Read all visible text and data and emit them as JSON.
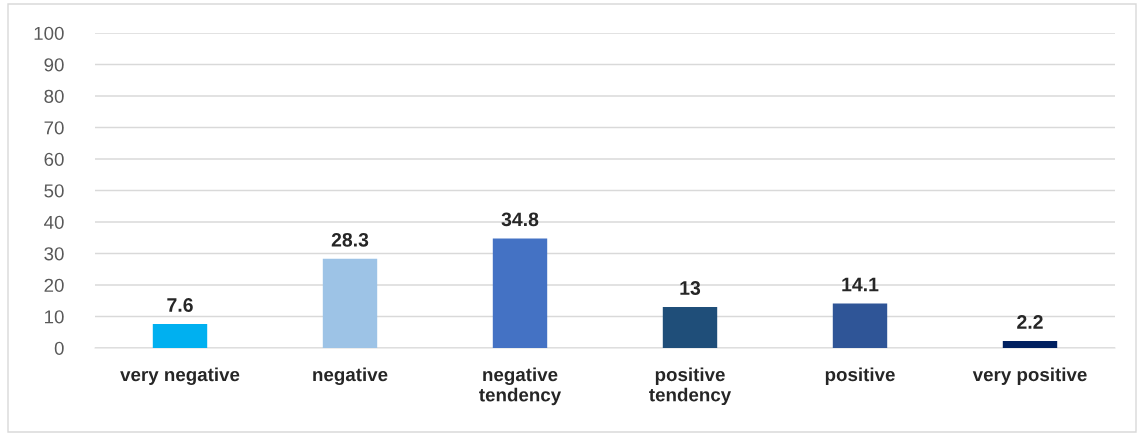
{
  "chart_data": {
    "type": "bar",
    "categories": [
      "very negative",
      "negative",
      "negative\ntendency",
      "positive\ntendency",
      "positive",
      "very positive"
    ],
    "values": [
      7.6,
      28.3,
      34.8,
      13,
      14.1,
      2.2
    ],
    "colors": [
      "#00b0f0",
      "#9dc3e6",
      "#4472c4",
      "#1f4e79",
      "#2f5597",
      "#002060"
    ],
    "ylim": [
      0,
      100
    ],
    "yticks": [
      0,
      10,
      20,
      30,
      40,
      50,
      60,
      70,
      80,
      90,
      100
    ],
    "grid": "y",
    "data_labels": true,
    "legend": false
  }
}
